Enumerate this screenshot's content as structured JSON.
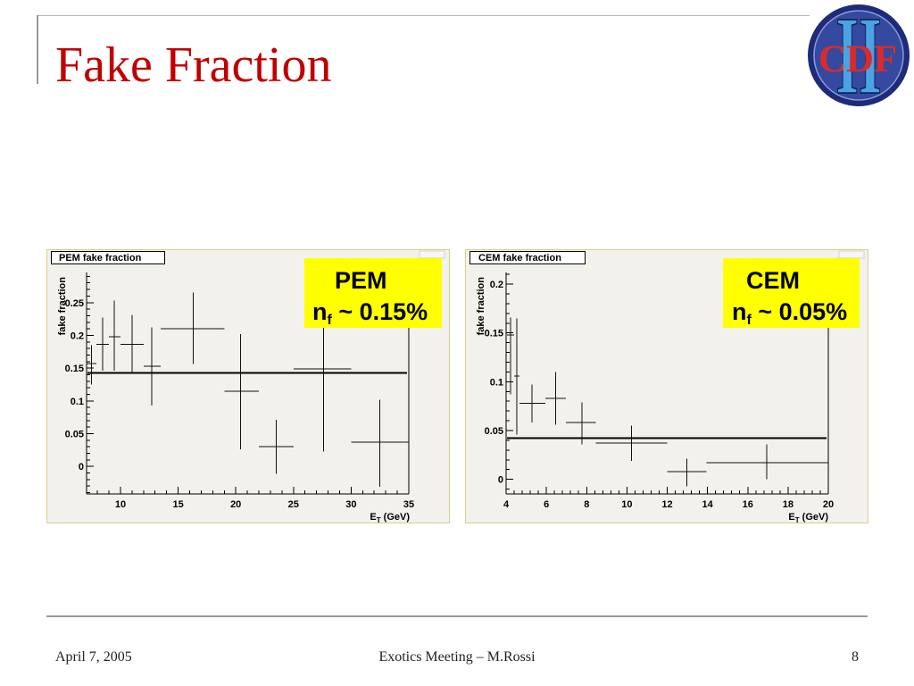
{
  "slide": {
    "title": "Fake Fraction",
    "logo": {
      "numeral": "II",
      "text": "CDF"
    },
    "footer": {
      "date": "April 7, 2005",
      "event": "Exotics Meeting – M.Rossi",
      "page": "8"
    }
  },
  "colors": {
    "title": "#C00000",
    "rule": "#999999",
    "rule_light": "#B5B5B5",
    "footer_text": "#222222",
    "annotation_bg": "#FFFF00",
    "panel_bg": "#F2F1EC",
    "panel_border": "#D9D08A",
    "logo_ring": "#1D2B7A",
    "logo_disk": "#3549A0",
    "logo_numeral": "#4BA3E3",
    "logo_text": "#D92B2B"
  },
  "chart_data": [
    {
      "type": "scatter",
      "title": "PEM fake fraction",
      "xlabel": {
        "base": "E",
        "sub": "T",
        "rest": " (GeV)"
      },
      "ylabel": "fake fraction",
      "xlim": [
        7.06,
        35
      ],
      "ylim": [
        -0.042,
        0.296
      ],
      "grid": false,
      "xticks": [
        {
          "value": 10,
          "label": "10"
        },
        {
          "value": 15,
          "label": "15"
        },
        {
          "value": 20,
          "label": "20"
        },
        {
          "value": 25,
          "label": "25"
        },
        {
          "value": 30,
          "label": "30"
        },
        {
          "value": 35,
          "label": "35"
        }
      ],
      "yticks": [
        {
          "value": 0,
          "label": "0"
        },
        {
          "value": 0.05,
          "label": "0.05"
        },
        {
          "value": 0.1,
          "label": "0.1"
        },
        {
          "value": 0.15,
          "label": "0.15"
        },
        {
          "value": 0.2,
          "label": "0.2"
        },
        {
          "value": 0.25,
          "label": "0.25"
        }
      ],
      "xminor": 1,
      "yminor": 0.01,
      "series": [
        {
          "points": [
            {
              "x": 7.5,
              "y": 0.157,
              "xlo": 7.1,
              "xhi": 7.9,
              "ylo": 0.125,
              "yhi": 0.185
            },
            {
              "x": 8.45,
              "y": 0.186,
              "xlo": 7.9,
              "xhi": 9.0,
              "ylo": 0.146,
              "yhi": 0.227
            },
            {
              "x": 9.46,
              "y": 0.198,
              "xlo": 9.0,
              "xhi": 10.0,
              "ylo": 0.146,
              "yhi": 0.253
            },
            {
              "x": 11.0,
              "y": 0.186,
              "xlo": 10.0,
              "xhi": 12.0,
              "ylo": 0.141,
              "yhi": 0.231
            },
            {
              "x": 12.7,
              "y": 0.153,
              "xlo": 12.0,
              "xhi": 13.5,
              "ylo": 0.093,
              "yhi": 0.212
            },
            {
              "x": 16.3,
              "y": 0.21,
              "xlo": 13.5,
              "xhi": 19.0,
              "ylo": 0.156,
              "yhi": 0.265
            },
            {
              "x": 20.4,
              "y": 0.115,
              "xlo": 19.0,
              "xhi": 22.0,
              "ylo": 0.026,
              "yhi": 0.202
            },
            {
              "x": 23.5,
              "y": 0.03,
              "xlo": 22.0,
              "xhi": 25.0,
              "ylo": -0.011,
              "yhi": 0.071
            },
            {
              "x": 27.6,
              "y": 0.149,
              "xlo": 25.0,
              "xhi": 30.0,
              "ylo": 0.023,
              "yhi": 0.212
            },
            {
              "x": 32.5,
              "y": 0.037,
              "xlo": 30.0,
              "xhi": 35.0,
              "ylo": -0.031,
              "yhi": 0.102
            }
          ]
        }
      ],
      "fit": {
        "type": "constant",
        "y": 0.143
      },
      "annotation": {
        "heading": "PEM",
        "symbol": "n",
        "subscript": "f",
        "value": " ~ 0.15%"
      }
    },
    {
      "type": "scatter",
      "title": "CEM fake fraction",
      "xlabel": {
        "base": "E",
        "sub": "T",
        "rest": " (GeV)"
      },
      "ylabel": "fake fraction",
      "xlim": [
        4,
        20
      ],
      "ylim": [
        -0.015,
        0.212
      ],
      "grid": false,
      "xticks": [
        {
          "value": 4,
          "label": "4"
        },
        {
          "value": 6,
          "label": "6"
        },
        {
          "value": 8,
          "label": "8"
        },
        {
          "value": 10,
          "label": "10"
        },
        {
          "value": 12,
          "label": "12"
        },
        {
          "value": 14,
          "label": "14"
        },
        {
          "value": 16,
          "label": "16"
        },
        {
          "value": 18,
          "label": "18"
        },
        {
          "value": 20,
          "label": "20"
        }
      ],
      "yticks": [
        {
          "value": 0,
          "label": "0"
        },
        {
          "value": 0.05,
          "label": "0.05"
        },
        {
          "value": 0.1,
          "label": "0.1"
        },
        {
          "value": 0.15,
          "label": "0.15"
        },
        {
          "value": 0.2,
          "label": "0.2"
        }
      ],
      "xminor": 0.4,
      "yminor": 0.01,
      "series": [
        {
          "points": [
            {
              "x": 4.22,
              "y": 0.148,
              "xlo": 4.04,
              "xhi": 4.4,
              "ylo": 0.087,
              "yhi": 0.166
            },
            {
              "x": 4.53,
              "y": 0.106,
              "xlo": 4.4,
              "xhi": 4.66,
              "ylo": 0.046,
              "yhi": 0.165
            },
            {
              "x": 5.28,
              "y": 0.078,
              "xlo": 4.66,
              "xhi": 5.94,
              "ylo": 0.058,
              "yhi": 0.097
            },
            {
              "x": 6.47,
              "y": 0.083,
              "xlo": 5.94,
              "xhi": 6.96,
              "ylo": 0.056,
              "yhi": 0.11
            },
            {
              "x": 7.76,
              "y": 0.058,
              "xlo": 6.96,
              "xhi": 8.46,
              "ylo": 0.036,
              "yhi": 0.079
            },
            {
              "x": 10.23,
              "y": 0.037,
              "xlo": 8.46,
              "xhi": 12.0,
              "ylo": 0.019,
              "yhi": 0.055
            },
            {
              "x": 12.97,
              "y": 0.008,
              "xlo": 12.0,
              "xhi": 13.94,
              "ylo": -0.007,
              "yhi": 0.021
            },
            {
              "x": 16.95,
              "y": 0.017,
              "xlo": 13.94,
              "xhi": 20.0,
              "ylo": 0.0,
              "yhi": 0.036
            }
          ]
        }
      ],
      "fit": {
        "type": "constant",
        "y": 0.042
      },
      "annotation": {
        "heading": "CEM",
        "symbol": "n",
        "subscript": "f",
        "value": " ~ 0.05%"
      }
    }
  ]
}
